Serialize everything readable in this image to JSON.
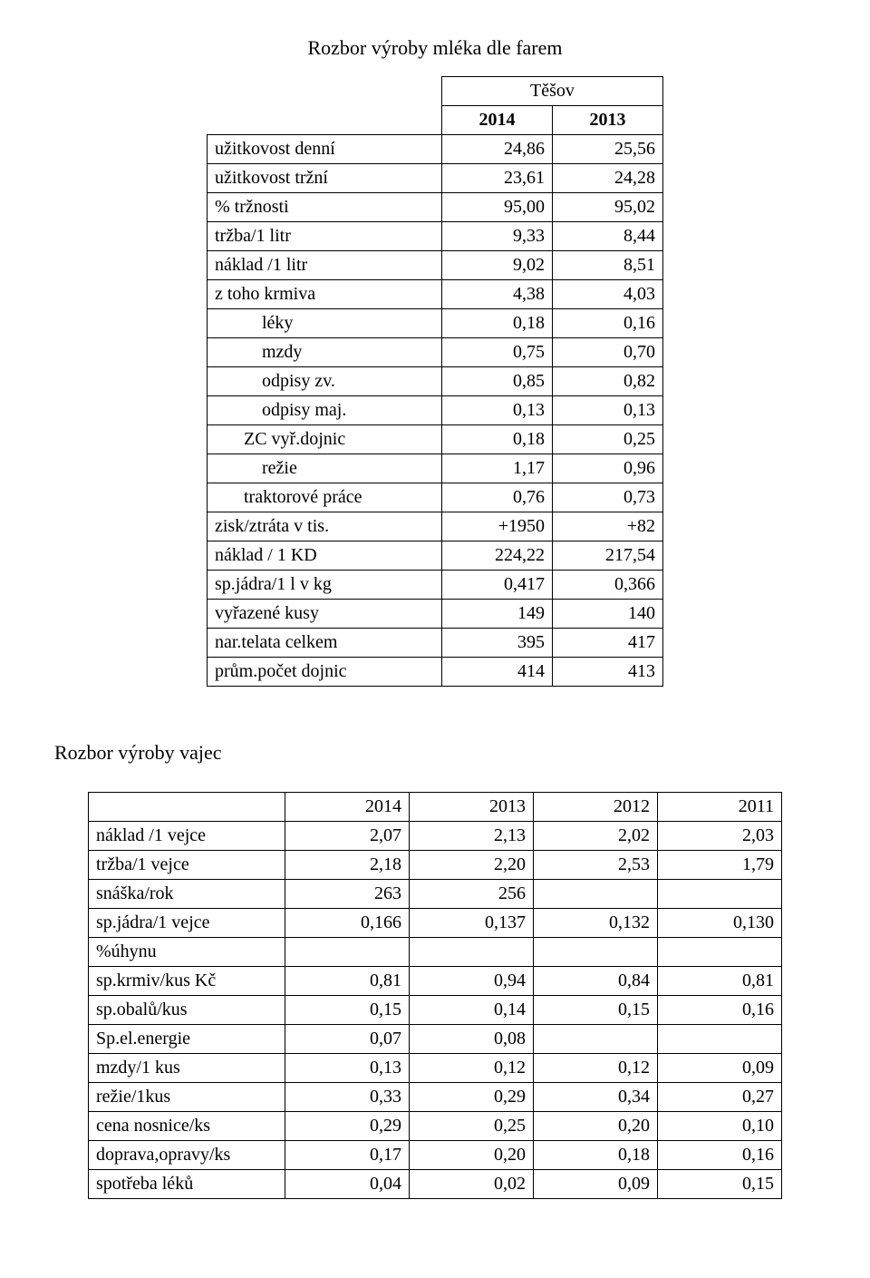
{
  "title": "Rozbor výroby mléka dle farem",
  "table1": {
    "super_header": "Těšov",
    "year_cols": [
      "2014",
      "2013"
    ],
    "rows": [
      {
        "label": "užitkovost denní",
        "indent": "",
        "v": [
          "24,86",
          "25,56"
        ]
      },
      {
        "label": "užitkovost tržní",
        "indent": "",
        "v": [
          "23,61",
          "24,28"
        ]
      },
      {
        "label": "% tržnosti",
        "indent": "",
        "v": [
          "95,00",
          "95,02"
        ]
      },
      {
        "label": "tržba/1 litr",
        "indent": "",
        "v": [
          "9,33",
          "8,44"
        ]
      },
      {
        "label": "náklad /1 litr",
        "indent": "",
        "v": [
          "9,02",
          "8,51"
        ]
      },
      {
        "label": "z toho krmiva",
        "indent": "",
        "v": [
          "4,38",
          "4,03"
        ]
      },
      {
        "label": "léky",
        "indent": "indent2",
        "v": [
          "0,18",
          "0,16"
        ]
      },
      {
        "label": "mzdy",
        "indent": "indent2",
        "v": [
          "0,75",
          "0,70"
        ]
      },
      {
        "label": "odpisy zv.",
        "indent": "indent2",
        "v": [
          "0,85",
          "0,82"
        ]
      },
      {
        "label": "odpisy maj.",
        "indent": "indent2",
        "v": [
          "0,13",
          "0,13"
        ]
      },
      {
        "label": "ZC vyř.dojnic",
        "indent": "indent1",
        "v": [
          "0,18",
          "0,25"
        ]
      },
      {
        "label": "režie",
        "indent": "indent2",
        "v": [
          "1,17",
          "0,96"
        ]
      },
      {
        "label": "traktorové práce",
        "indent": "indent1",
        "v": [
          "0,76",
          "0,73"
        ]
      },
      {
        "label": "zisk/ztráta  v tis.",
        "indent": "",
        "v": [
          "+1950",
          "+82"
        ]
      },
      {
        "label": "náklad / 1 KD",
        "indent": "",
        "v": [
          "224,22",
          "217,54"
        ]
      },
      {
        "label": "sp.jádra/1 l v kg",
        "indent": "",
        "v": [
          "0,417",
          "0,366"
        ]
      },
      {
        "label": "vyřazené kusy",
        "indent": "",
        "v": [
          "149",
          "140"
        ]
      },
      {
        "label": "nar.telata celkem",
        "indent": "",
        "v": [
          "395",
          "417"
        ]
      },
      {
        "label": "prům.počet dojnic",
        "indent": "",
        "v": [
          "414",
          "413"
        ]
      }
    ]
  },
  "section2_title": "Rozbor  výroby vajec",
  "table2": {
    "year_cols": [
      "2014",
      "2013",
      "2012",
      "2011"
    ],
    "rows": [
      {
        "label": "náklad /1 vejce",
        "v": [
          "2,07",
          "2,13",
          "2,02",
          "2,03"
        ]
      },
      {
        "label": "tržba/1 vejce",
        "v": [
          "2,18",
          "2,20",
          "2,53",
          "1,79"
        ]
      },
      {
        "label": "snáška/rok",
        "v": [
          "263",
          "256",
          "",
          ""
        ]
      },
      {
        "label": "sp.jádra/1 vejce",
        "v": [
          "0,166",
          "0,137",
          "0,132",
          "0,130"
        ]
      },
      {
        "label": "%úhynu",
        "v": [
          "",
          "",
          "",
          ""
        ]
      },
      {
        "label": "sp.krmiv/kus Kč",
        "v": [
          "0,81",
          "0,94",
          "0,84",
          "0,81"
        ]
      },
      {
        "label": "sp.obalů/kus",
        "v": [
          "0,15",
          "0,14",
          "0,15",
          "0,16"
        ]
      },
      {
        "label": "Sp.el.energie",
        "v": [
          "0,07",
          "0,08",
          "",
          ""
        ]
      },
      {
        "label": "mzdy/1 kus",
        "v": [
          "0,13",
          "0,12",
          "0,12",
          "0,09"
        ]
      },
      {
        "label": "režie/1kus",
        "v": [
          "0,33",
          "0,29",
          "0,34",
          "0,27"
        ]
      },
      {
        "label": "cena nosnice/ks",
        "v": [
          "0,29",
          "0,25",
          "0,20",
          "0,10"
        ]
      },
      {
        "label": "doprava,opravy/ks",
        "v": [
          "0,17",
          "0,20",
          "0,18",
          "0,16"
        ]
      },
      {
        "label": "spotřeba léků",
        "v": [
          "0,04",
          "0,02",
          "0,09",
          "0,15"
        ]
      }
    ]
  }
}
